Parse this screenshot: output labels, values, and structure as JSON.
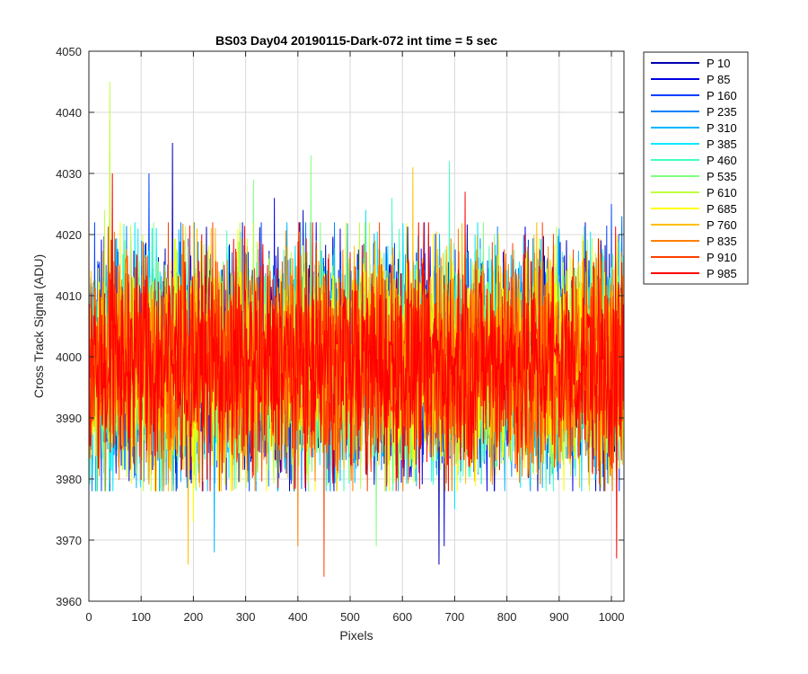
{
  "chart_data": {
    "type": "line",
    "title": "BS03 Day04 20190115-Dark-072 int time = 5 sec",
    "xlabel": "Pixels",
    "ylabel": "Cross Track Signal (ADU)",
    "xlim": [
      0,
      1024
    ],
    "ylim": [
      3960,
      4050
    ],
    "xticks": [
      0,
      100,
      200,
      300,
      400,
      500,
      600,
      700,
      800,
      900,
      1000
    ],
    "yticks": [
      3960,
      3970,
      3980,
      3990,
      4000,
      4010,
      4020,
      4030,
      4040,
      4050
    ],
    "grid": true,
    "legend_position": "outside-top-right",
    "mean": 3999,
    "typical_range": [
      3980,
      4020
    ],
    "num_pixels": 1024,
    "series": [
      {
        "name": "P 10",
        "color": "#0000b0",
        "peaks": [
          [
            160,
            4035
          ],
          [
            410,
            4024
          ],
          [
            670,
            3966
          ]
        ]
      },
      {
        "name": "P 85",
        "color": "#0000e6",
        "peaks": [
          [
            355,
            4026
          ],
          [
            680,
            3969
          ],
          [
            580,
            4022
          ]
        ]
      },
      {
        "name": "P 160",
        "color": "#0040ff",
        "peaks": [
          [
            115,
            4030
          ],
          [
            650,
            4020
          ],
          [
            1000,
            4025
          ]
        ]
      },
      {
        "name": "P 235",
        "color": "#0080ff",
        "peaks": [
          [
            470,
            4022
          ],
          [
            1020,
            4023
          ]
        ]
      },
      {
        "name": "P 310",
        "color": "#00b4ff",
        "peaks": [
          [
            240,
            3968
          ],
          [
            900,
            4021
          ]
        ]
      },
      {
        "name": "P 385",
        "color": "#00e8ff",
        "peaks": [
          [
            530,
            4024
          ],
          [
            700,
            3975
          ]
        ]
      },
      {
        "name": "P 460",
        "color": "#40ffc0",
        "peaks": [
          [
            580,
            4026
          ],
          [
            690,
            4032
          ]
        ]
      },
      {
        "name": "P 535",
        "color": "#80ff80",
        "peaks": [
          [
            315,
            4029
          ],
          [
            425,
            4033
          ],
          [
            550,
            3969
          ]
        ]
      },
      {
        "name": "P 610",
        "color": "#c0ff40",
        "peaks": [
          [
            40,
            4045
          ],
          [
            30,
            4024
          ]
        ]
      },
      {
        "name": "P 685",
        "color": "#ffff00",
        "peaks": [
          [
            60,
            4022
          ],
          [
            200,
            3973
          ]
        ]
      },
      {
        "name": "P 760",
        "color": "#ffc000",
        "peaks": [
          [
            190,
            3966
          ],
          [
            620,
            4031
          ]
        ]
      },
      {
        "name": "P 835",
        "color": "#ff8000",
        "peaks": [
          [
            0,
            4024
          ],
          [
            400,
            3969
          ]
        ]
      },
      {
        "name": "P 910",
        "color": "#ff4000",
        "peaks": [
          [
            450,
            3964
          ],
          [
            840,
            4018
          ]
        ]
      },
      {
        "name": "P 985",
        "color": "#ff0000",
        "peaks": [
          [
            45,
            4030
          ],
          [
            720,
            4027
          ],
          [
            1010,
            3967
          ]
        ]
      }
    ]
  }
}
